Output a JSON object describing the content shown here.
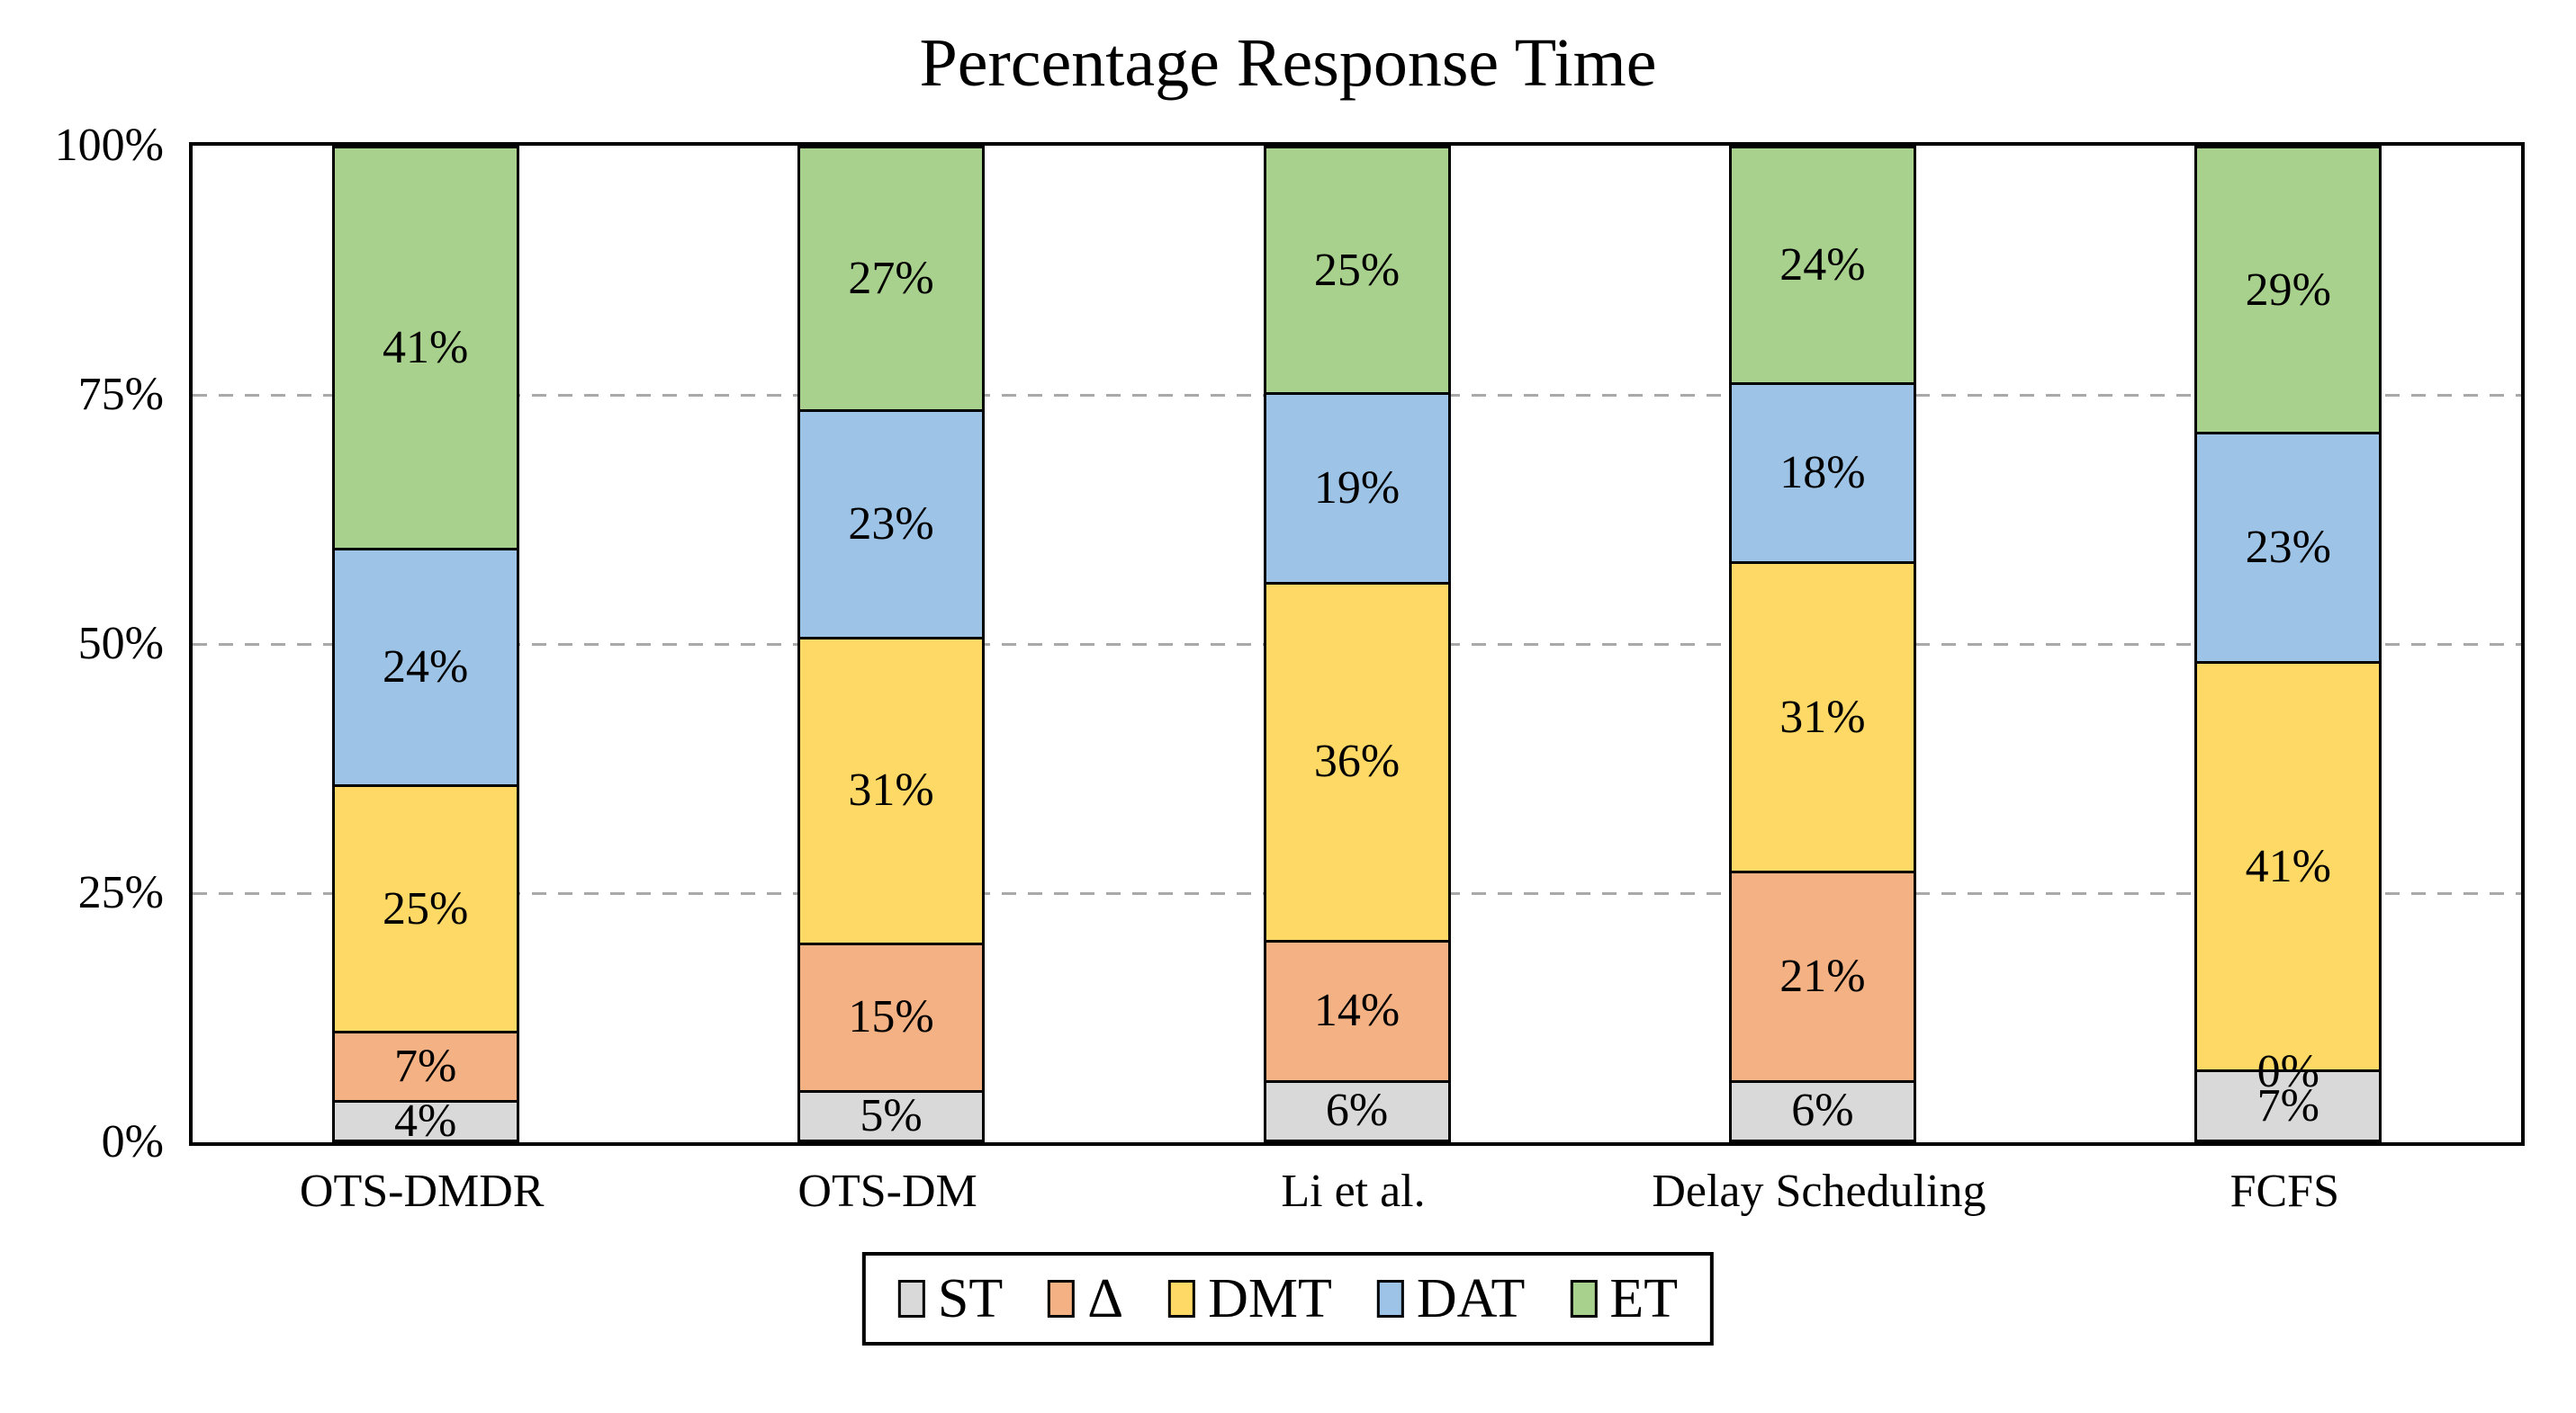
{
  "chart_data": {
    "type": "bar",
    "stacked": true,
    "title": "Percentage Response Time",
    "categories": [
      "OTS-DMDR",
      "OTS-DM",
      "Li et al.",
      "Delay Scheduling",
      "FCFS"
    ],
    "series": [
      {
        "name": "ST",
        "color": "#D9D9D9",
        "values": [
          4,
          5,
          6,
          6,
          7
        ]
      },
      {
        "name": "Δ",
        "color": "#F4B183",
        "values": [
          7,
          15,
          14,
          21,
          0
        ]
      },
      {
        "name": "DMT",
        "color": "#FFD966",
        "values": [
          25,
          31,
          36,
          31,
          41
        ]
      },
      {
        "name": "DAT",
        "color": "#9DC3E6",
        "values": [
          24,
          23,
          19,
          18,
          23
        ]
      },
      {
        "name": "ET",
        "color": "#A9D18E",
        "values": [
          41,
          27,
          25,
          24,
          29
        ]
      }
    ],
    "data_labels": [
      [
        "4%",
        "7%",
        "25%",
        "24%",
        "41%"
      ],
      [
        "5%",
        "15%",
        "31%",
        "23%",
        "27%"
      ],
      [
        "6%",
        "14%",
        "36%",
        "19%",
        "25%"
      ],
      [
        "6%",
        "21%",
        "31%",
        "18%",
        "24%"
      ],
      [
        "7%",
        "0%",
        "41%",
        "23%",
        "29%"
      ]
    ],
    "y_ticks": [
      {
        "label": "0%",
        "value": 0
      },
      {
        "label": "25%",
        "value": 25
      },
      {
        "label": "50%",
        "value": 50
      },
      {
        "label": "75%",
        "value": 75
      },
      {
        "label": "100%",
        "value": 100
      }
    ],
    "ylim": [
      0,
      100
    ],
    "grid": {
      "values": [
        25,
        50,
        75
      ],
      "style": "dashed",
      "color": "#A9A9A9"
    },
    "legend": {
      "position": "bottom",
      "entries": [
        "ST",
        "Δ",
        "DMT",
        "DAT",
        "ET"
      ]
    },
    "colors": {
      "segment_border": "#000000",
      "plot_border": "#000000",
      "background": "#FFFFFF",
      "text": "#000000"
    }
  }
}
